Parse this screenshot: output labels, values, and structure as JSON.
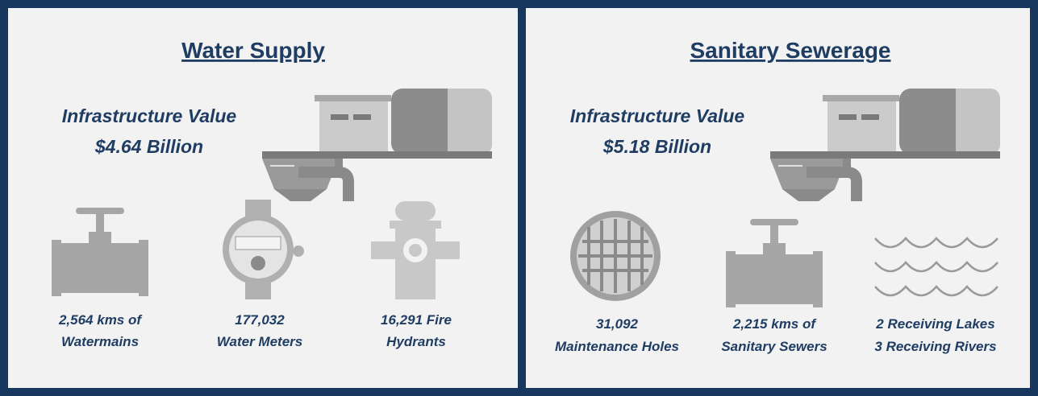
{
  "panels": [
    {
      "title": "Water Supply",
      "value_label": "Infrastructure Value",
      "value": "$4.64 Billion",
      "items": [
        {
          "lines": [
            "2,564 kms of",
            "Watermains"
          ]
        },
        {
          "lines": [
            "177,032",
            "Water Meters"
          ]
        },
        {
          "lines": [
            "16,291 Fire",
            "Hydrants"
          ]
        }
      ]
    },
    {
      "title": "Sanitary Sewerage",
      "value_label": "Infrastructure Value",
      "value": "$5.18 Billion",
      "items": [
        {
          "lines": [
            "31,092",
            "Maintenance Holes"
          ]
        },
        {
          "lines": [
            "2,215 kms of",
            "Sanitary Sewers"
          ]
        },
        {
          "lines": [
            "2 Receiving Lakes",
            "3 Receiving Rivers"
          ]
        }
      ]
    }
  ]
}
